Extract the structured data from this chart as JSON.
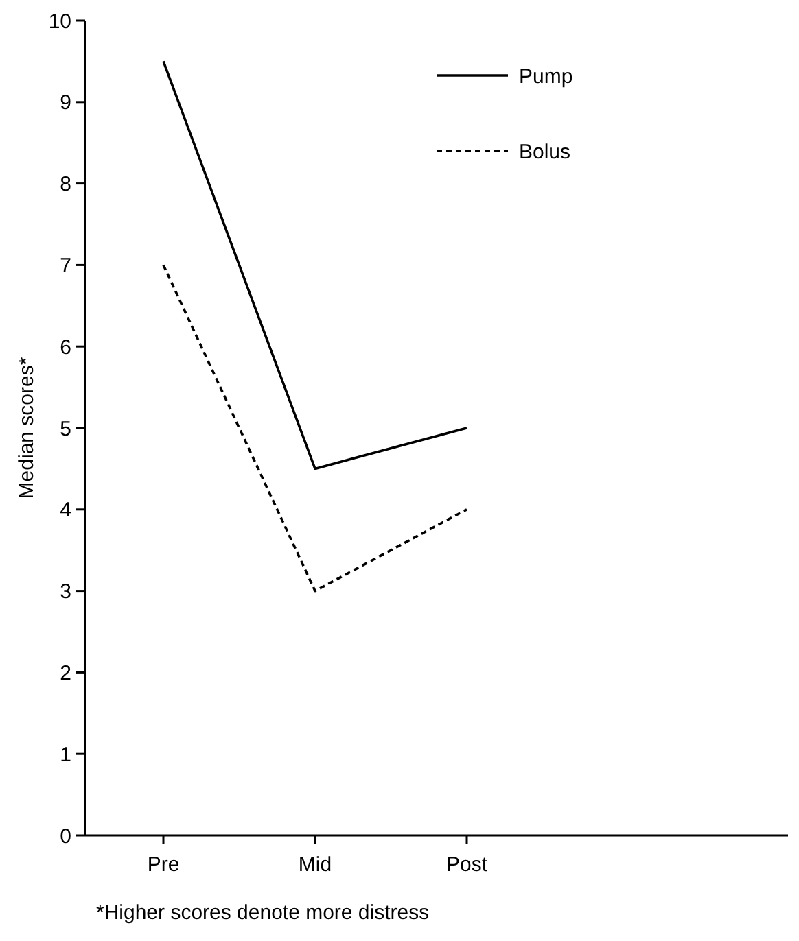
{
  "chart_data": {
    "type": "line",
    "ylabel": "Median scores*",
    "categories": [
      "Pre",
      "Mid",
      "Post"
    ],
    "series": [
      {
        "name": "Pump",
        "color": "#000000",
        "line_style": "solid",
        "values": [
          9.5,
          4.5,
          5
        ]
      },
      {
        "name": "Bolus",
        "color": "#000000",
        "line_style": "dashed",
        "values": [
          7,
          3,
          4
        ]
      }
    ],
    "ylim": [
      0,
      10
    ],
    "yticks": [
      0,
      1,
      2,
      3,
      4,
      5,
      6,
      7,
      8,
      9,
      10
    ],
    "grid": false,
    "legend": "top right",
    "marker": "none",
    "annotations": [
      "*Higher scores denote more distress"
    ]
  }
}
